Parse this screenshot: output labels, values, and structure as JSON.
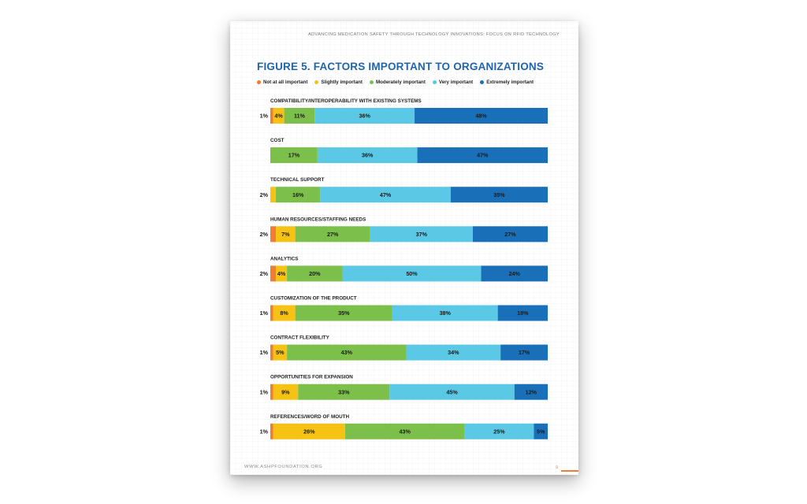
{
  "header": {
    "running_title": "ADVANCING MEDICATION SAFETY THROUGH TECHNOLOGY INNOVATIONS: FOCUS ON RFID TECHNOLOGY"
  },
  "footer": {
    "url": "WWW.ASHPFOUNDATION.ORG",
    "page_number": "9"
  },
  "colors": {
    "not_at_all": "#ef7d35",
    "slightly": "#f6c315",
    "moderately": "#7cc04b",
    "very": "#5bc9e6",
    "extremely": "#1a70b8",
    "title": "#1f64ad"
  },
  "chart_data": {
    "type": "bar",
    "orientation": "horizontal-stacked-100",
    "title": "FIGURE 5. FACTORS IMPORTANT TO ORGANIZATIONS",
    "legend_placement": "top",
    "series": [
      {
        "name": "Not at all important",
        "color": "#ef7d35"
      },
      {
        "name": "Slightly important",
        "color": "#f6c315"
      },
      {
        "name": "Moderately important",
        "color": "#7cc04b"
      },
      {
        "name": "Very important",
        "color": "#5bc9e6"
      },
      {
        "name": "Extremely important",
        "color": "#1a70b8"
      }
    ],
    "categories": [
      {
        "label": "COMPATIBILITY/INTEROPERABILITY WITH EXISTING SYSTEMS",
        "values": [
          1,
          4,
          11,
          36,
          48
        ],
        "labels": [
          "1%",
          "4%",
          "11%",
          "36%",
          "48%"
        ]
      },
      {
        "label": "COST",
        "values": [
          0,
          0,
          17,
          36,
          47
        ],
        "labels": [
          "",
          "",
          "17%",
          "36%",
          "47%"
        ]
      },
      {
        "label": "TECHNICAL SUPPORT",
        "values": [
          0,
          2,
          16,
          47,
          35
        ],
        "labels": [
          "",
          "2%",
          "16%",
          "47%",
          "35%"
        ]
      },
      {
        "label": "HUMAN RESOURCES/STAFFING NEEDS",
        "values": [
          2,
          7,
          27,
          37,
          27
        ],
        "labels": [
          "2%",
          "7%",
          "27%",
          "37%",
          "27%"
        ]
      },
      {
        "label": "ANALYTICS",
        "values": [
          2,
          4,
          20,
          50,
          24
        ],
        "labels": [
          "2%",
          "4%",
          "20%",
          "50%",
          "24%"
        ]
      },
      {
        "label": "CUSTOMIZATION OF THE PRODUCT",
        "values": [
          1,
          8,
          35,
          38,
          18
        ],
        "labels": [
          "1%",
          "8%",
          "35%",
          "38%",
          "18%"
        ]
      },
      {
        "label": "CONTRACT FLEXIBILITY",
        "values": [
          1,
          5,
          43,
          34,
          17
        ],
        "labels": [
          "1%",
          "5%",
          "43%",
          "34%",
          "17%"
        ]
      },
      {
        "label": "OPPORTUNITIES FOR EXPANSION",
        "values": [
          1,
          9,
          33,
          45,
          12
        ],
        "labels": [
          "1%",
          "9%",
          "33%",
          "45%",
          "12%"
        ]
      },
      {
        "label": "REFERENCES/WORD OF MOUTH",
        "values": [
          1,
          26,
          43,
          25,
          5
        ],
        "labels": [
          "1%",
          "26%",
          "43%",
          "25%",
          "5%"
        ]
      }
    ],
    "xlim": [
      0,
      100
    ]
  }
}
